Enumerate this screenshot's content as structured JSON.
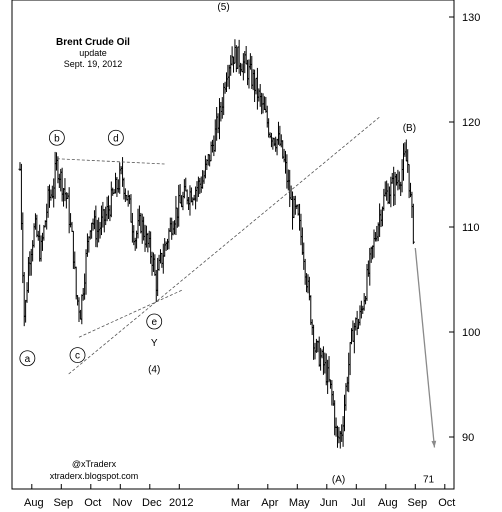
{
  "chart_data": {
    "type": "bar",
    "subtype": "ohlc-daily",
    "title": "Brent Crude Oil",
    "subtitle": "update",
    "date_label": "Sept. 19, 2012",
    "credits": [
      "@xTraderx",
      "xtraderx.blogspot.com"
    ],
    "ylim": [
      85,
      133
    ],
    "yticks": [
      90,
      100,
      110,
      120,
      130
    ],
    "xlim": [
      0,
      14.6
    ],
    "xticks": [
      {
        "label": "Aug",
        "m": 0.4
      },
      {
        "label": "Sep",
        "m": 1.4
      },
      {
        "label": "Oct",
        "m": 2.4
      },
      {
        "label": "Nov",
        "m": 3.4
      },
      {
        "label": "Dec",
        "m": 4.4
      },
      {
        "label": "2012",
        "m": 5.4
      },
      {
        "label": "Mar",
        "m": 7.4
      },
      {
        "label": "Apr",
        "m": 8.4
      },
      {
        "label": "May",
        "m": 9.4
      },
      {
        "label": "Jun",
        "m": 10.4
      },
      {
        "label": "Jul",
        "m": 11.4
      },
      {
        "label": "Aug",
        "m": 12.4
      },
      {
        "label": "Sep",
        "m": 13.4
      },
      {
        "label": "Oct",
        "m": 14.4
      }
    ],
    "series_keypoints": [
      [
        0.0,
        115.5
      ],
      [
        0.15,
        101.0
      ],
      [
        0.3,
        107.0
      ],
      [
        0.5,
        110.0
      ],
      [
        0.7,
        107.5
      ],
      [
        0.95,
        112.5
      ],
      [
        1.1,
        113.5
      ],
      [
        1.25,
        116.0
      ],
      [
        1.4,
        114.5
      ],
      [
        1.6,
        112.5
      ],
      [
        1.8,
        108.0
      ],
      [
        1.9,
        103.5
      ],
      [
        2.05,
        102.0
      ],
      [
        2.2,
        106.0
      ],
      [
        2.4,
        111.0
      ],
      [
        2.6,
        109.5
      ],
      [
        2.9,
        111.0
      ],
      [
        3.1,
        112.5
      ],
      [
        3.3,
        114.0
      ],
      [
        3.45,
        115.0
      ],
      [
        3.7,
        112.0
      ],
      [
        3.9,
        109.0
      ],
      [
        4.1,
        110.5
      ],
      [
        4.3,
        108.5
      ],
      [
        4.5,
        107.0
      ],
      [
        4.6,
        104.5
      ],
      [
        4.75,
        106.5
      ],
      [
        5.0,
        109.0
      ],
      [
        5.2,
        111.0
      ],
      [
        5.6,
        113.0
      ],
      [
        5.9,
        113.5
      ],
      [
        6.2,
        114.5
      ],
      [
        6.5,
        117.5
      ],
      [
        6.8,
        121.0
      ],
      [
        7.0,
        125.0
      ],
      [
        7.2,
        126.5
      ],
      [
        7.4,
        126.0
      ],
      [
        7.6,
        125.5
      ],
      [
        7.9,
        124.0
      ],
      [
        8.2,
        121.5
      ],
      [
        8.5,
        119.0
      ],
      [
        8.8,
        118.0
      ],
      [
        9.0,
        115.5
      ],
      [
        9.2,
        112.0
      ],
      [
        9.4,
        111.0
      ],
      [
        9.6,
        108.0
      ],
      [
        9.8,
        103.0
      ],
      [
        10.0,
        98.5
      ],
      [
        10.2,
        97.5
      ],
      [
        10.4,
        96.0
      ],
      [
        10.6,
        93.5
      ],
      [
        10.75,
        89.5
      ],
      [
        10.9,
        90.5
      ],
      [
        11.1,
        96.0
      ],
      [
        11.3,
        100.5
      ],
      [
        11.5,
        101.0
      ],
      [
        11.7,
        104.0
      ],
      [
        11.9,
        107.0
      ],
      [
        12.1,
        110.0
      ],
      [
        12.3,
        112.5
      ],
      [
        12.5,
        113.5
      ],
      [
        12.7,
        114.0
      ],
      [
        12.9,
        115.0
      ],
      [
        13.05,
        116.5
      ],
      [
        13.15,
        116.0
      ],
      [
        13.25,
        112.0
      ],
      [
        13.35,
        109.0
      ]
    ],
    "wave_labels": [
      {
        "text": "a",
        "m": 0.25,
        "v": 97.5,
        "circled": true
      },
      {
        "text": "b",
        "m": 1.25,
        "v": 118.5,
        "circled": true
      },
      {
        "text": "c",
        "m": 1.95,
        "v": 97.8,
        "circled": true
      },
      {
        "text": "d",
        "m": 3.25,
        "v": 118.5,
        "circled": true
      },
      {
        "text": "e",
        "m": 4.55,
        "v": 101.0,
        "circled": true
      },
      {
        "text": "Y",
        "m": 4.55,
        "v": 99.0,
        "circled": false
      },
      {
        "text": "(4)",
        "m": 4.55,
        "v": 96.5,
        "circled": false
      },
      {
        "text": "(5)",
        "m": 6.9,
        "v": 131.0,
        "circled": false
      },
      {
        "text": "(A)",
        "m": 10.8,
        "v": 86.0,
        "circled": false
      },
      {
        "text": "(B)",
        "m": 13.2,
        "v": 119.5,
        "circled": false
      },
      {
        "text": "71",
        "m": 13.85,
        "v": 86.0,
        "circled": false
      }
    ],
    "trendlines": [
      {
        "from": [
          1.25,
          116.5
        ],
        "to": [
          4.9,
          116.0
        ]
      },
      {
        "from": [
          1.65,
          96.0
        ],
        "to": [
          12.2,
          120.5
        ]
      },
      {
        "from": [
          2.0,
          99.5
        ],
        "to": [
          5.5,
          104.0
        ]
      }
    ],
    "projection_arrow": {
      "from": [
        13.4,
        108.0
      ],
      "to": [
        14.05,
        89.0
      ],
      "color": "#8a8a8a"
    }
  }
}
